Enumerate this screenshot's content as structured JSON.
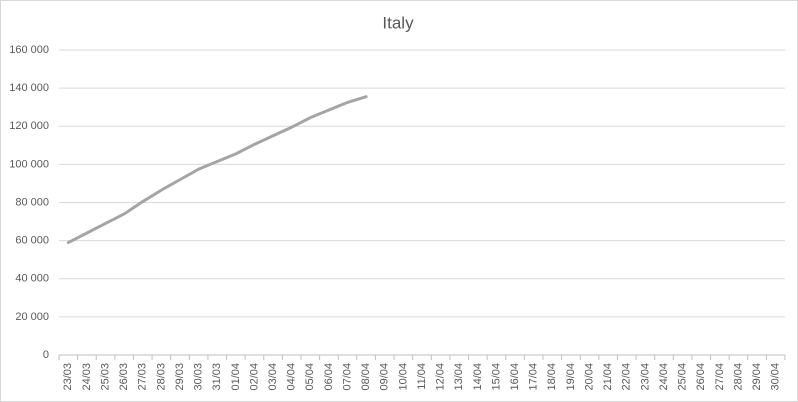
{
  "chart_data": {
    "type": "line",
    "title": "Italy",
    "categories": [
      "23/03",
      "24/03",
      "25/03",
      "26/03",
      "27/03",
      "28/03",
      "29/03",
      "30/03",
      "31/03",
      "01/04",
      "02/04",
      "03/04",
      "04/04",
      "05/04",
      "06/04",
      "07/04",
      "08/04",
      "09/04",
      "10/04",
      "11/04",
      "12/04",
      "13/04",
      "14/04",
      "15/04",
      "16/04",
      "17/04",
      "18/04",
      "19/04",
      "20/04",
      "21/04",
      "22/04",
      "23/04",
      "24/04",
      "25/04",
      "26/04",
      "27/04",
      "28/04",
      "29/04",
      "30/04"
    ],
    "series": [
      {
        "name": "Italy",
        "color": "#a5a5a5",
        "values": [
          59000,
          64000,
          69000,
          74000,
          80500,
          86500,
          92000,
          97500,
          101500,
          105500,
          110500,
          115000,
          119500,
          124500,
          128500,
          132500,
          135500,
          null,
          null,
          null,
          null,
          null,
          null,
          null,
          null,
          null,
          null,
          null,
          null,
          null,
          null,
          null,
          null,
          null,
          null,
          null,
          null,
          null,
          null
        ]
      }
    ],
    "ylim": [
      0,
      160000
    ],
    "yticks": [
      0,
      {
        "value": 20000,
        "label": "20 000"
      },
      {
        "value": 40000,
        "label": "40 000"
      },
      {
        "value": 60000,
        "label": "60 000"
      },
      {
        "value": 80000,
        "label": "80 000"
      },
      {
        "value": 100000,
        "label": "100 000"
      },
      {
        "value": 120000,
        "label": "120 000"
      },
      {
        "value": 140000,
        "label": "140 000"
      },
      {
        "value": 160000,
        "label": "160 000"
      }
    ],
    "grid": true
  }
}
